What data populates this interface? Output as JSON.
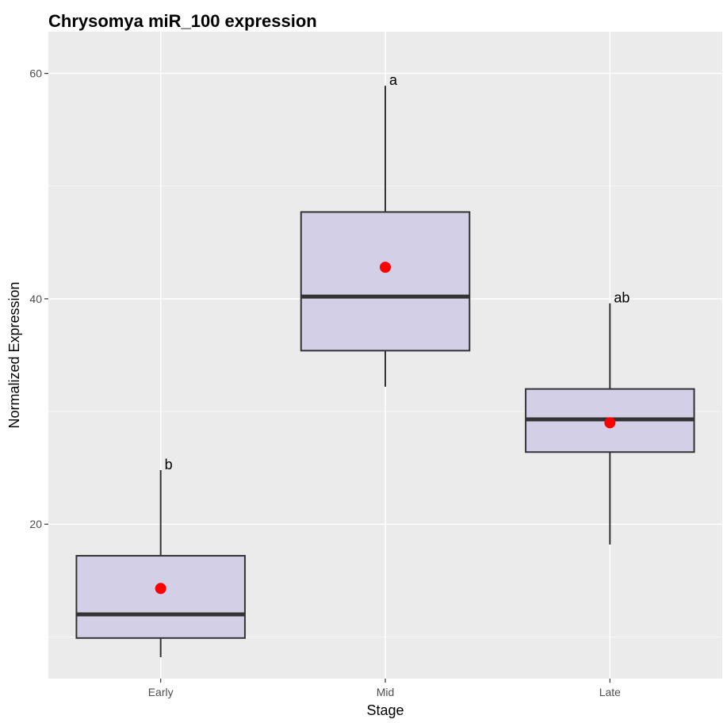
{
  "chart_data": {
    "type": "boxplot",
    "title": "Chrysomya miR_100 expression",
    "xlabel": "Stage",
    "ylabel": "Normalized Expression",
    "ylim": [
      6.3,
      63.7
    ],
    "yticks": [
      20,
      40,
      60
    ],
    "grid": true,
    "categories": [
      "Early",
      "Mid",
      "Late"
    ],
    "boxes": [
      {
        "category": "Early",
        "whisker_low": 8.2,
        "q1": 9.9,
        "median": 12.0,
        "q3": 17.2,
        "whisker_high": 24.8,
        "mean": 14.3,
        "label": "b"
      },
      {
        "category": "Mid",
        "whisker_low": 32.2,
        "q1": 35.4,
        "median": 40.2,
        "q3": 47.7,
        "whisker_high": 58.9,
        "mean": 42.8,
        "label": "a"
      },
      {
        "category": "Late",
        "whisker_low": 18.2,
        "q1": 26.4,
        "median": 29.3,
        "q3": 32.0,
        "whisker_high": 39.6,
        "mean": 29.0,
        "label": "ab"
      }
    ],
    "colors": {
      "panel": "#EBEBEB",
      "grid": "#FFFFFF",
      "box_fill": "#D3CFE6",
      "box_stroke": "#333333",
      "mean_point": "#FF0000"
    }
  }
}
